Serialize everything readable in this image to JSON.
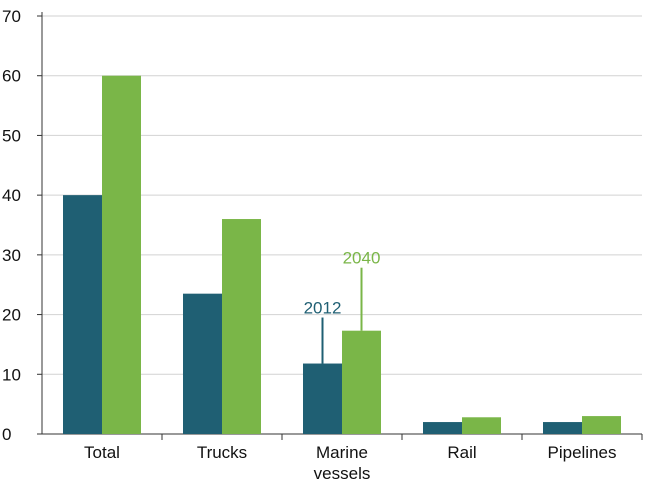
{
  "chart_data": {
    "type": "bar",
    "title": "",
    "xlabel": "",
    "ylabel": "",
    "ylim": [
      0,
      70
    ],
    "yticks": [
      0,
      10,
      20,
      30,
      40,
      50,
      60,
      70
    ],
    "grid": true,
    "categories": [
      [
        "Total"
      ],
      [
        "Trucks"
      ],
      [
        "Marine",
        "vessels"
      ],
      [
        "Rail"
      ],
      [
        "Pipelines"
      ]
    ],
    "series": [
      {
        "name": "2012",
        "color": "#1f5f73",
        "values": [
          40,
          23.5,
          11.8,
          2,
          2
        ]
      },
      {
        "name": "2040",
        "color": "#7ab648",
        "values": [
          60,
          36,
          17.3,
          2.8,
          3
        ]
      }
    ],
    "annotations": {
      "category_index": 2,
      "labels": [
        {
          "series": 0,
          "text": "2012"
        },
        {
          "series": 1,
          "text": "2040"
        }
      ]
    }
  }
}
